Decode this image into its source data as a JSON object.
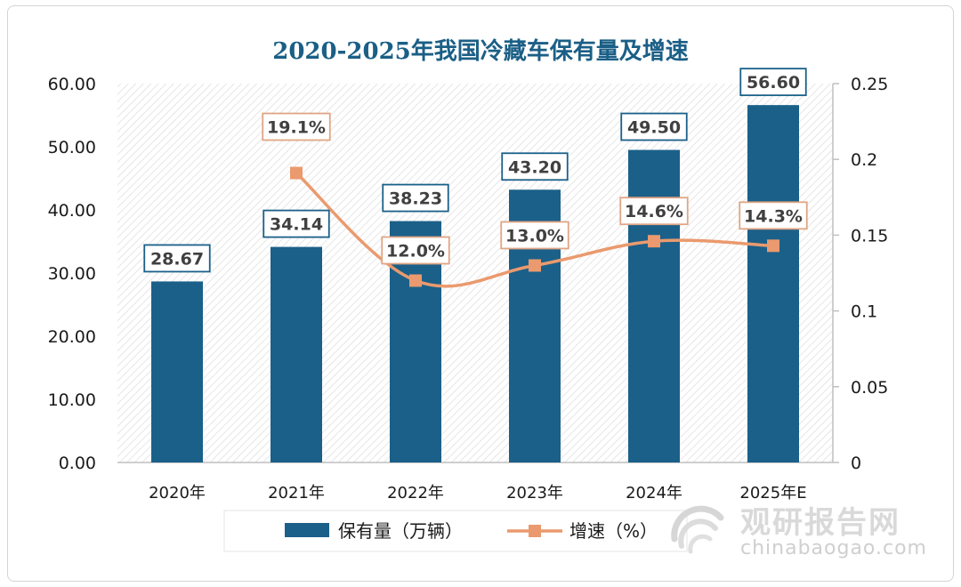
{
  "chart_data": {
    "type": "bar",
    "title": "2020-2025年我国冷藏车保有量及增速",
    "categories": [
      "2020年",
      "2021年",
      "2022年",
      "2023年",
      "2024年",
      "2025年E"
    ],
    "series": [
      {
        "name": "保有量（万辆）",
        "type": "bar",
        "axis": "left",
        "values": [
          28.67,
          34.14,
          38.23,
          43.2,
          49.5,
          56.6
        ],
        "labels": [
          "28.67",
          "34.14",
          "38.23",
          "43.20",
          "49.50",
          "56.60"
        ],
        "color": "#1b6089"
      },
      {
        "name": "增速（%）",
        "type": "line",
        "axis": "right",
        "values": [
          null,
          0.191,
          0.12,
          0.13,
          0.146,
          0.143
        ],
        "labels": [
          "",
          "19.1%",
          "12.0%",
          "13.0%",
          "14.6%",
          "14.3%"
        ],
        "color": "#ea9a6e"
      }
    ],
    "y_left": {
      "ylim": [
        0,
        60
      ],
      "ticks": [
        "0.00",
        "10.00",
        "20.00",
        "30.00",
        "40.00",
        "50.00",
        "60.00"
      ]
    },
    "y_right": {
      "ylim": [
        0,
        0.25
      ],
      "ticks": [
        "0",
        "0.05",
        "0.1",
        "0.15",
        "0.2",
        "0.25"
      ]
    },
    "grid": false,
    "legend_position": "bottom"
  },
  "watermark": {
    "name_cn": "观研报告网",
    "site": "chinabaogao.com"
  },
  "colors": {
    "bar": "#1b6089",
    "line": "#ea9a6e",
    "title": "#1b5f86",
    "label_border_bar": "#1b6089",
    "label_border_line": "#e0a585"
  }
}
